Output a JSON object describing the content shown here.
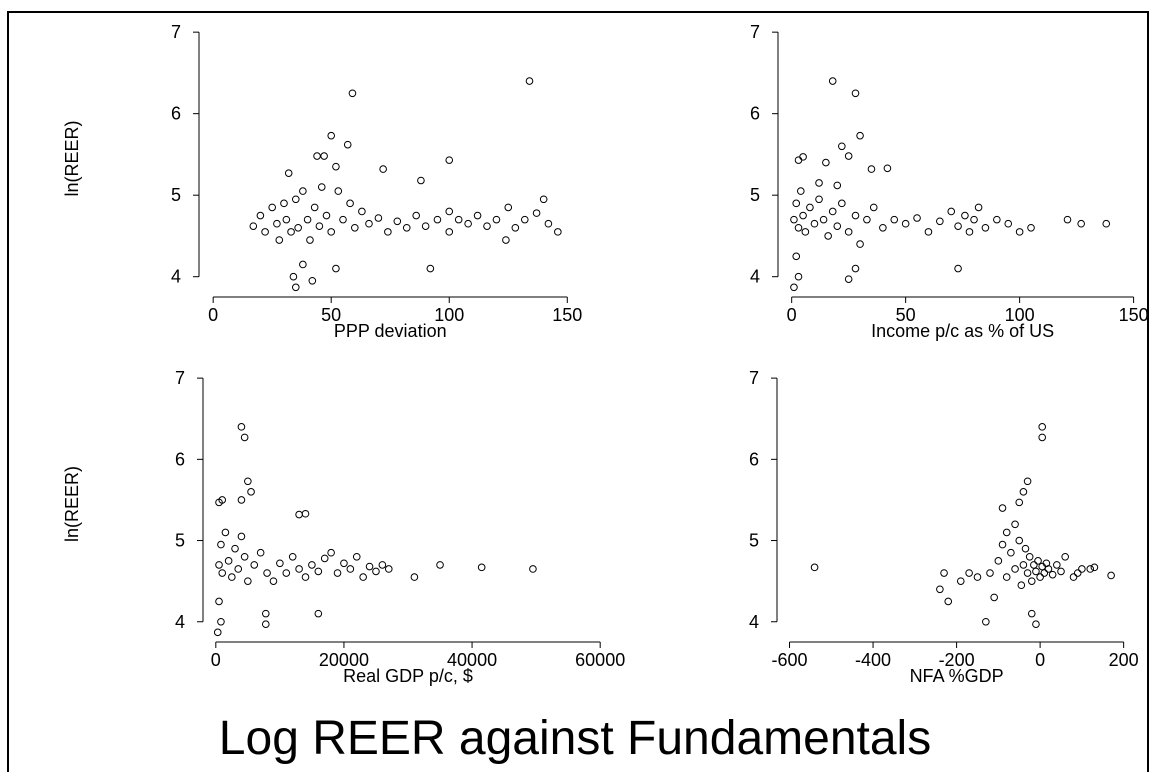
{
  "title": "Log REER against Fundamentals",
  "chart_data": [
    {
      "type": "scatter",
      "x_label": "PPP deviation",
      "y_label": "ln(REER)",
      "color": "#000000",
      "xlim": [
        -6,
        152
      ],
      "xticks": [
        0,
        50,
        100,
        150
      ],
      "ylim": [
        3.8,
        7.1
      ],
      "yticks": [
        4,
        5,
        6,
        7
      ],
      "x": [
        134,
        59,
        50,
        57,
        44,
        47,
        100,
        52,
        72,
        88,
        32,
        140,
        92,
        34,
        35,
        38,
        42,
        52,
        146,
        124,
        17,
        20,
        22,
        25,
        27,
        28,
        30,
        31,
        33,
        35,
        36,
        38,
        40,
        41,
        43,
        45,
        46,
        48,
        50,
        53,
        55,
        58,
        60,
        63,
        66,
        70,
        74,
        78,
        82,
        86,
        90,
        95,
        100,
        100,
        104,
        108,
        112,
        116,
        120,
        125,
        128,
        132,
        137,
        142
      ],
      "values": [
        6.4,
        6.25,
        5.73,
        5.62,
        5.48,
        5.48,
        5.43,
        5.35,
        5.32,
        5.18,
        5.27,
        4.95,
        4.1,
        4.0,
        3.87,
        4.15,
        3.95,
        4.1,
        4.55,
        4.45,
        4.62,
        4.75,
        4.55,
        4.85,
        4.65,
        4.45,
        4.9,
        4.7,
        4.55,
        4.95,
        4.6,
        5.05,
        4.7,
        4.45,
        4.85,
        4.62,
        5.1,
        4.75,
        4.55,
        5.05,
        4.7,
        4.9,
        4.6,
        4.8,
        4.65,
        4.72,
        4.55,
        4.68,
        4.6,
        4.75,
        4.62,
        4.7,
        4.8,
        4.55,
        4.7,
        4.65,
        4.75,
        4.62,
        4.7,
        4.85,
        4.6,
        4.7,
        4.78,
        4.65
      ]
    },
    {
      "type": "scatter",
      "x_label": "Income p/c as % of US",
      "color": "#000000",
      "xlim": [
        -6,
        155
      ],
      "xticks": [
        0,
        50,
        100,
        150
      ],
      "ylim": [
        3.8,
        7.1
      ],
      "yticks": [
        4,
        5,
        6,
        7
      ],
      "x": [
        18,
        28,
        30,
        22,
        5,
        3,
        25,
        15,
        42,
        35,
        1,
        3,
        2,
        25,
        28,
        73,
        121,
        127,
        138,
        12,
        20,
        1,
        2,
        3,
        4,
        5,
        6,
        8,
        10,
        12,
        14,
        16,
        18,
        20,
        22,
        25,
        28,
        30,
        33,
        36,
        40,
        45,
        50,
        55,
        60,
        65,
        70,
        73,
        76,
        78,
        80,
        82,
        85,
        90,
        95,
        100,
        105
      ],
      "values": [
        6.4,
        6.25,
        5.73,
        5.6,
        5.47,
        5.43,
        5.48,
        5.4,
        5.33,
        5.32,
        3.87,
        4.0,
        4.25,
        3.97,
        4.1,
        4.1,
        4.7,
        4.65,
        4.65,
        5.15,
        5.12,
        4.7,
        4.9,
        4.6,
        5.05,
        4.75,
        4.55,
        4.85,
        4.65,
        4.95,
        4.7,
        4.5,
        4.8,
        4.62,
        4.9,
        4.55,
        4.75,
        4.4,
        4.7,
        4.85,
        4.6,
        4.7,
        4.65,
        4.72,
        4.55,
        4.68,
        4.8,
        4.62,
        4.75,
        4.55,
        4.7,
        4.85,
        4.6,
        4.7,
        4.65,
        4.55,
        4.6
      ]
    },
    {
      "type": "scatter",
      "x_label": "Real GDP p/c, $",
      "y_label": "ln(REER)",
      "color": "#000000",
      "xlim": [
        -2000,
        62000
      ],
      "xticks": [
        0,
        20000,
        40000,
        60000
      ],
      "ylim": [
        3.8,
        7.1
      ],
      "yticks": [
        4,
        5,
        6,
        7
      ],
      "x": [
        4000,
        4500,
        5000,
        5500,
        500,
        1000,
        4000,
        13000,
        14000,
        16000,
        7800,
        7800,
        300,
        800,
        500,
        41500,
        49500,
        35000,
        31000,
        500,
        800,
        1000,
        1500,
        2000,
        2500,
        3000,
        3500,
        4000,
        4500,
        5000,
        6000,
        7000,
        8000,
        9000,
        10000,
        11000,
        12000,
        13000,
        14000,
        15000,
        16000,
        17000,
        18000,
        19000,
        20000,
        21000,
        22000,
        23000,
        24000,
        25000,
        26000,
        27000
      ],
      "values": [
        6.4,
        6.27,
        5.73,
        5.6,
        5.47,
        5.5,
        5.5,
        5.32,
        5.33,
        4.1,
        4.1,
        3.97,
        3.87,
        4.0,
        4.25,
        4.67,
        4.65,
        4.7,
        4.55,
        4.7,
        4.95,
        4.6,
        5.1,
        4.75,
        4.55,
        4.9,
        4.65,
        5.05,
        4.8,
        4.5,
        4.7,
        4.85,
        4.6,
        4.5,
        4.72,
        4.6,
        4.8,
        4.65,
        4.55,
        4.7,
        4.62,
        4.78,
        4.85,
        4.6,
        4.72,
        4.65,
        4.8,
        4.55,
        4.68,
        4.62,
        4.7,
        4.65
      ]
    },
    {
      "type": "scatter",
      "x_label": "NFA %GDP",
      "color": "#000000",
      "xlim": [
        -630,
        220
      ],
      "xticks": [
        -600,
        -400,
        -200,
        0,
        200
      ],
      "ylim": [
        3.8,
        7.1
      ],
      "yticks": [
        4,
        5,
        6,
        7
      ],
      "x": [
        -540,
        5,
        5,
        -30,
        -40,
        -50,
        -90,
        -130,
        -10,
        -20,
        -230,
        -240,
        -220,
        -170,
        -190,
        170,
        130,
        120,
        -60,
        -80,
        -120,
        -100,
        -90,
        -80,
        -70,
        -60,
        -50,
        -45,
        -40,
        -35,
        -30,
        -25,
        -20,
        -15,
        -10,
        -5,
        0,
        5,
        10,
        15,
        20,
        30,
        40,
        50,
        60,
        80,
        90,
        100,
        -150,
        -110
      ],
      "values": [
        4.67,
        6.4,
        6.27,
        5.73,
        5.6,
        5.47,
        5.4,
        4.0,
        3.97,
        4.1,
        4.6,
        4.4,
        4.25,
        4.6,
        4.5,
        4.57,
        4.67,
        4.65,
        5.2,
        5.1,
        4.6,
        4.75,
        4.95,
        4.55,
        4.85,
        4.65,
        5.0,
        4.45,
        4.7,
        4.9,
        4.6,
        4.8,
        4.5,
        4.7,
        4.62,
        4.75,
        4.55,
        4.68,
        4.6,
        4.72,
        4.65,
        4.58,
        4.7,
        4.62,
        4.8,
        4.55,
        4.6,
        4.65,
        4.55,
        4.3
      ]
    }
  ]
}
